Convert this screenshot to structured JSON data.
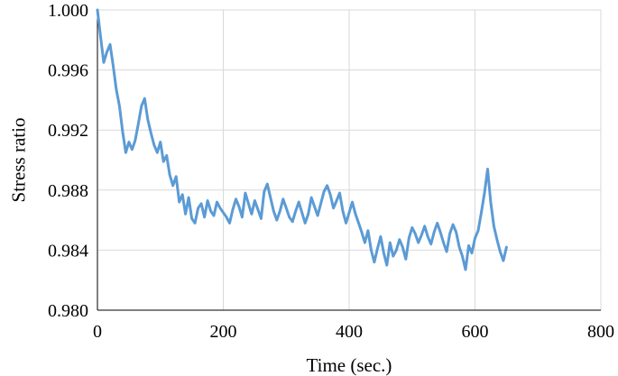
{
  "chart_data": {
    "type": "line",
    "title": "",
    "xlabel": "Time (sec.)",
    "ylabel": "Stress ratio",
    "xlim": [
      0,
      800
    ],
    "ylim": [
      0.98,
      1.0
    ],
    "x_ticks": [
      0,
      200,
      400,
      600,
      800
    ],
    "x_tick_labels": [
      "0",
      "200",
      "400",
      "600",
      "800"
    ],
    "y_ticks": [
      0.98,
      0.984,
      0.988,
      0.992,
      0.996,
      1.0
    ],
    "y_tick_labels": [
      "0.980",
      "0.984",
      "0.988",
      "0.992",
      "0.996",
      "1.000"
    ],
    "grid": true,
    "legend": "none",
    "line_color": "#5b9bd5",
    "series": [
      {
        "x": [
          0,
          5,
          10,
          15,
          20,
          25,
          30,
          35,
          40,
          45,
          50,
          55,
          60,
          65,
          70,
          75,
          80,
          85,
          90,
          95,
          100,
          105,
          110,
          115,
          120,
          125,
          130,
          135,
          140,
          145,
          150,
          155,
          160,
          165,
          170,
          175,
          180,
          185,
          190,
          195,
          200,
          205,
          210,
          215,
          220,
          225,
          230,
          235,
          240,
          245,
          250,
          255,
          260,
          265,
          270,
          275,
          280,
          285,
          290,
          295,
          300,
          305,
          310,
          315,
          320,
          325,
          330,
          335,
          340,
          345,
          350,
          355,
          360,
          365,
          370,
          375,
          380,
          385,
          390,
          395,
          400,
          405,
          410,
          415,
          420,
          425,
          430,
          435,
          440,
          445,
          450,
          455,
          460,
          465,
          470,
          475,
          480,
          485,
          490,
          495,
          500,
          505,
          510,
          515,
          520,
          525,
          530,
          535,
          540,
          545,
          550,
          555,
          560,
          565,
          570,
          575,
          580,
          585,
          590,
          595,
          600,
          605,
          610,
          615,
          620,
          625,
          630,
          635,
          640,
          645,
          650
        ],
        "values": [
          1.0,
          0.9982,
          0.9965,
          0.9972,
          0.9977,
          0.9963,
          0.9947,
          0.9936,
          0.9919,
          0.9905,
          0.9912,
          0.9907,
          0.9913,
          0.9924,
          0.9936,
          0.9941,
          0.9927,
          0.9918,
          0.991,
          0.9905,
          0.9912,
          0.9899,
          0.9903,
          0.989,
          0.9883,
          0.9889,
          0.9872,
          0.9877,
          0.9864,
          0.9875,
          0.9861,
          0.9858,
          0.9868,
          0.9871,
          0.9862,
          0.9873,
          0.9866,
          0.9863,
          0.9872,
          0.9868,
          0.9865,
          0.9862,
          0.9858,
          0.9867,
          0.9874,
          0.9869,
          0.9862,
          0.9878,
          0.9871,
          0.9864,
          0.9873,
          0.9867,
          0.9861,
          0.9879,
          0.9884,
          0.9875,
          0.9866,
          0.986,
          0.9866,
          0.9874,
          0.9868,
          0.9862,
          0.9859,
          0.9866,
          0.9872,
          0.9865,
          0.9858,
          0.9864,
          0.9875,
          0.9869,
          0.9863,
          0.9871,
          0.9879,
          0.9883,
          0.9877,
          0.9868,
          0.9873,
          0.9878,
          0.9866,
          0.9858,
          0.9865,
          0.9872,
          0.9864,
          0.9858,
          0.9852,
          0.9845,
          0.9853,
          0.984,
          0.9832,
          0.9841,
          0.9849,
          0.9838,
          0.983,
          0.9845,
          0.9836,
          0.984,
          0.9847,
          0.9842,
          0.9834,
          0.9848,
          0.9855,
          0.9851,
          0.9845,
          0.985,
          0.9856,
          0.9849,
          0.9844,
          0.9852,
          0.9858,
          0.9852,
          0.9845,
          0.9839,
          0.9851,
          0.9857,
          0.9852,
          0.9842,
          0.9836,
          0.9827,
          0.9843,
          0.9838,
          0.9848,
          0.9853,
          0.9865,
          0.9878,
          0.9894,
          0.9872,
          0.9856,
          0.9847,
          0.9839,
          0.9833,
          0.9842
        ]
      }
    ]
  }
}
